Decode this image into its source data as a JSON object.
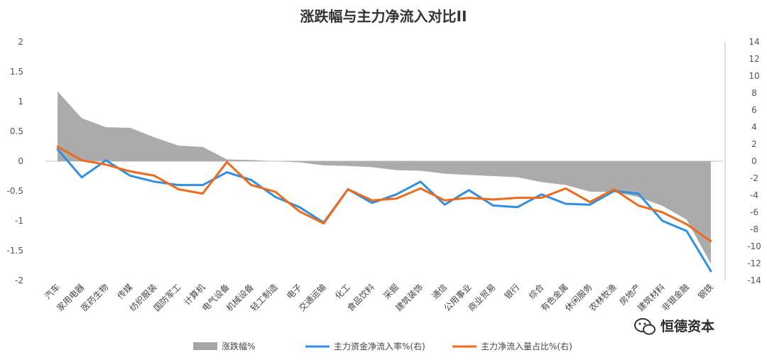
{
  "chart_data": {
    "type": "area+line",
    "title": "涨跌幅与主力净流入对比II",
    "categories": [
      "汽车",
      "家用电器",
      "医药生物",
      "传媒",
      "纺织服装",
      "国防军工",
      "计算机",
      "电气设备",
      "机械设备",
      "轻工制造",
      "电子",
      "交通运输",
      "化工",
      "食品饮料",
      "采掘",
      "建筑装饰",
      "通信",
      "公用事业",
      "商业贸易",
      "银行",
      "综合",
      "有色金属",
      "休闲服务",
      "农林牧渔",
      "房地产",
      "建筑材料",
      "非银金融",
      "钢铁"
    ],
    "left_axis": {
      "min": -2,
      "max": 2,
      "ticks": [
        "2",
        "1.5",
        "1",
        "0.5",
        "0",
        "-0.5",
        "-1",
        "-1.5",
        "-2"
      ]
    },
    "right_axis": {
      "min": -14,
      "max": 14,
      "ticks": [
        "14",
        "12",
        "10",
        "8",
        "6",
        "4",
        "2",
        "0",
        "-2",
        "-4",
        "-6",
        "-8",
        "-10",
        "-12",
        "-14"
      ]
    },
    "series": [
      {
        "name": "涨跌幅%",
        "type": "area",
        "axis": "left",
        "color": "#a6a6a6",
        "values": [
          1.17,
          0.72,
          0.57,
          0.56,
          0.4,
          0.26,
          0.24,
          0.03,
          0.02,
          0.0,
          -0.02,
          -0.07,
          -0.08,
          -0.1,
          -0.15,
          -0.16,
          -0.21,
          -0.23,
          -0.25,
          -0.27,
          -0.35,
          -0.4,
          -0.51,
          -0.52,
          -0.6,
          -0.75,
          -0.98,
          -1.72
        ]
      },
      {
        "name": "主力资金净流入率%(右)",
        "type": "line",
        "axis": "right",
        "color": "#2f8fe0",
        "values": [
          1.4,
          -1.9,
          0.1,
          -1.7,
          -2.4,
          -2.8,
          -2.8,
          -1.3,
          -2.2,
          -4.2,
          -5.4,
          -7.2,
          -3.3,
          -4.9,
          -3.9,
          -2.4,
          -5.1,
          -3.4,
          -5.2,
          -5.4,
          -3.9,
          -5.0,
          -5.1,
          -3.5,
          -3.8,
          -7.0,
          -8.2,
          -12.9
        ]
      },
      {
        "name": "主力净流入量占比%(右)",
        "type": "line",
        "axis": "right",
        "color": "#f06a1a",
        "values": [
          1.7,
          0.1,
          -0.4,
          -1.2,
          -1.7,
          -3.3,
          -3.8,
          -0.1,
          -2.8,
          -3.6,
          -5.9,
          -7.3,
          -3.3,
          -4.6,
          -4.4,
          -3.2,
          -4.6,
          -4.3,
          -4.5,
          -4.3,
          -4.3,
          -3.2,
          -4.8,
          -3.3,
          -5.2,
          -6.0,
          -7.4,
          -9.4
        ]
      }
    ],
    "legend_position": "bottom"
  },
  "watermark": {
    "text": "恒德资本",
    "icon": "wechat-icon"
  }
}
